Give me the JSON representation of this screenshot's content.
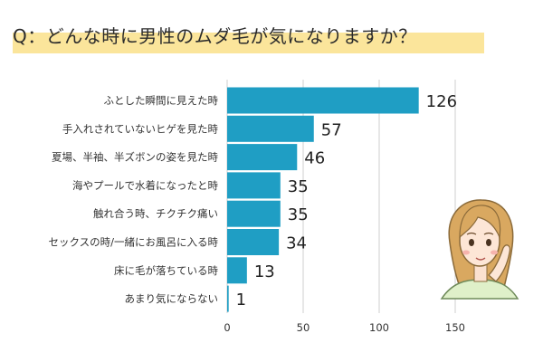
{
  "chart_data": {
    "type": "bar",
    "orientation": "horizontal",
    "title": "Q：どんな時に男性のムダ毛が気になりますか？",
    "categories": [
      "ふとした瞬間に見えた時",
      "手入れされていないヒゲを見た時",
      "夏場、半袖、半ズボンの姿を見た時",
      "海やプールで水着になったと時",
      "触れ合う時、チクチク痛い",
      "セックスの時/一緒にお風呂に入る時",
      "床に毛が落ちている時",
      "あまり気にならない"
    ],
    "values": [
      126,
      57,
      46,
      35,
      35,
      34,
      13,
      1
    ],
    "xlim": [
      0,
      150
    ],
    "xticks": [
      0,
      50,
      100,
      150
    ],
    "grid": true,
    "bar_color": "#1f9ec4",
    "title_highlight_color": "#fbe59b"
  },
  "illustration": {
    "icon": "woman-with-hand-on-cheek-icon"
  }
}
